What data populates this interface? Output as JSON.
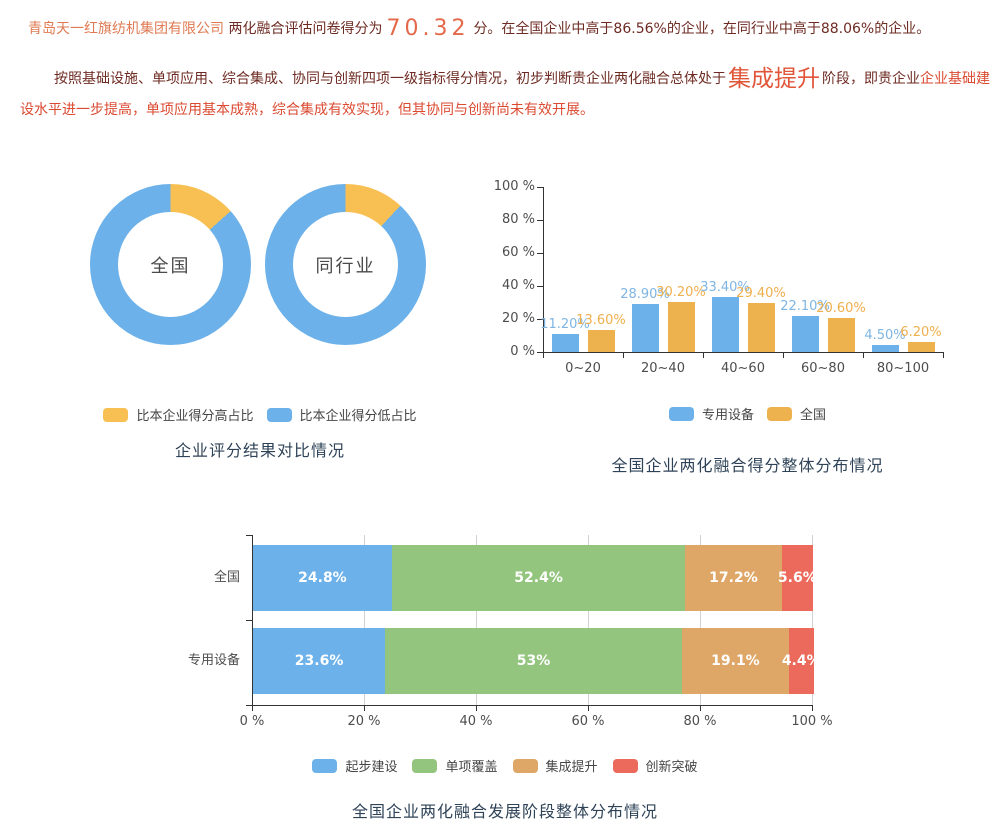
{
  "colors": {
    "body_text": "#6E2B23",
    "company": "#DF7A52",
    "score": "#E4684A",
    "stage": "#E15539",
    "highlight_red": "#DB4A31",
    "title": "#2F4358",
    "axis_text": "#4D4D4D"
  },
  "report": {
    "company_name": "青岛天一红旗纺机集团有限公司",
    "score_prefix": "两化融合评估问卷得分为",
    "score": "70.32",
    "score_suffix": "分。在全国企业中高于86.56%的企业，在同行业中高于88.06%的企业。",
    "stage_prefix": "按照基础设施、单项应用、综合集成、协同与创新四项一级指标得分情况，初步判断贵企业两化融合总体处于",
    "stage": "集成提升",
    "stage_mid": "阶段，即贵企业",
    "stage_highlight": "企业基础建设水平进一步提高，单项应用基本成熟，综合集成有效实现，但其协同与创新尚未有效开展。"
  },
  "chart_data": [
    {
      "type": "pie",
      "subtype": "donut-pair",
      "title": "企业评分结果对比情况",
      "legend_position": "bottom",
      "legend": [
        {
          "label": "比本企业得分高占比",
          "color": "#F8C052"
        },
        {
          "label": "比本企业得分低占比",
          "color": "#6CB1E9"
        }
      ],
      "donuts": [
        {
          "center_label": "全国",
          "slices": [
            {
              "name": "比本企业得分高占比",
              "value": 13.44
            },
            {
              "name": "比本企业得分低占比",
              "value": 86.56
            }
          ]
        },
        {
          "center_label": "同行业",
          "slices": [
            {
              "name": "比本企业得分高占比",
              "value": 11.94
            },
            {
              "name": "比本企业得分低占比",
              "value": 88.06
            }
          ]
        }
      ]
    },
    {
      "type": "bar",
      "title": "全国企业两化融合得分整体分布情况",
      "categories": [
        "0~20",
        "20~40",
        "40~60",
        "60~80",
        "80~100"
      ],
      "ylim": [
        0,
        100
      ],
      "y_ticks": [
        "0 %",
        "20 %",
        "40 %",
        "60 %",
        "80 %",
        "100 %"
      ],
      "grid": false,
      "legend_position": "bottom",
      "series": [
        {
          "name": "专用设备",
          "color": "#6CB1E9",
          "label_color": "#7FB5E3",
          "values": [
            11.2,
            28.9,
            33.4,
            22.1,
            4.5
          ],
          "value_labels": [
            "11.20%",
            "28.90%",
            "33.40%",
            "22.10%",
            "4.50%"
          ]
        },
        {
          "name": "全国",
          "color": "#EDB24D",
          "label_color": "#EFAF4D",
          "values": [
            13.6,
            30.2,
            29.4,
            20.6,
            6.2
          ],
          "value_labels": [
            "13.60%",
            "30.20%",
            "29.40%",
            "20.60%",
            "6.20%"
          ]
        }
      ]
    },
    {
      "type": "bar",
      "subtype": "stacked-horizontal",
      "title": "全国企业两化融合发展阶段整体分布情况",
      "categories": [
        "全国",
        "专用设备"
      ],
      "xlim": [
        0,
        100
      ],
      "x_ticks": [
        "0 %",
        "20 %",
        "40 %",
        "60 %",
        "80 %",
        "100 %"
      ],
      "grid": true,
      "legend_position": "bottom",
      "series": [
        {
          "name": "起步建设",
          "color": "#6CB1E9",
          "values": [
            24.8,
            23.6
          ],
          "value_labels": [
            "24.8%",
            "23.6%"
          ]
        },
        {
          "name": "单项覆盖",
          "color": "#94C57E",
          "values": [
            52.4,
            53.0
          ],
          "value_labels": [
            "52.4%",
            "53%"
          ]
        },
        {
          "name": "集成提升",
          "color": "#DFA767",
          "values": [
            17.2,
            19.1
          ],
          "value_labels": [
            "17.2%",
            "19.1%"
          ]
        },
        {
          "name": "创新突破",
          "color": "#EC6A5C",
          "values": [
            5.6,
            4.4
          ],
          "value_labels": [
            "5.6%",
            "4.4%"
          ]
        }
      ]
    }
  ]
}
